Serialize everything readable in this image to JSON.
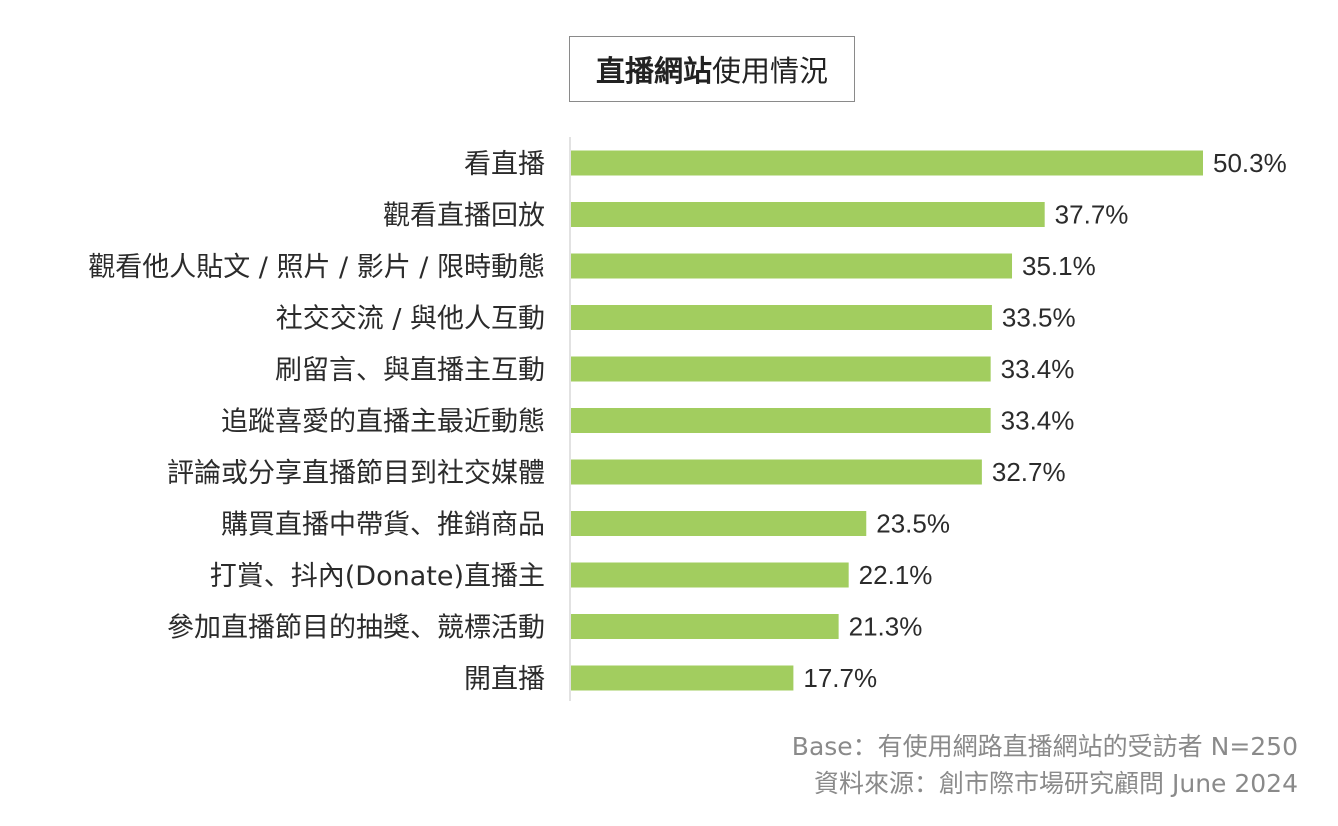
{
  "chart_data": {
    "type": "bar",
    "orientation": "horizontal",
    "title_bold": "直播網站",
    "title_rest": "使用情況",
    "categories": [
      "看直播",
      "觀看直播回放",
      "觀看他人貼文 / 照片 / 影片 / 限時動態",
      "社交交流 / 與他人互動",
      "刷留言、與直播主互動",
      "追蹤喜愛的直播主最近動態",
      "評論或分享直播節目到社交媒體",
      "購買直播中帶貨、推銷商品",
      "打賞、抖內(Donate)直播主",
      "參加直播節目的抽獎、競標活動",
      "開直播"
    ],
    "values": [
      50.3,
      37.7,
      35.1,
      33.5,
      33.4,
      33.4,
      32.7,
      23.5,
      22.1,
      21.3,
      17.7
    ],
    "value_labels": [
      "50.3%",
      "37.7%",
      "35.1%",
      "33.5%",
      "33.4%",
      "33.4%",
      "32.7%",
      "23.5%",
      "22.1%",
      "21.3%",
      "17.7%"
    ],
    "bar_color": "#a2cd5f",
    "axis_color": "#d9d9d9",
    "grid": false,
    "legend": "none"
  },
  "footer": {
    "base": "Base：有使用網路直播網站的受訪者 N=250",
    "source": "資料來源：創市際市場研究顧問 June 2024"
  }
}
